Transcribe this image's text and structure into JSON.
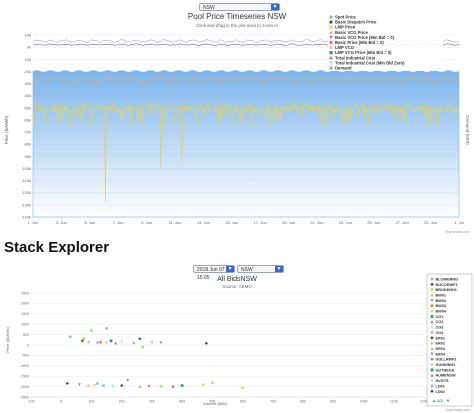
{
  "top": {
    "region_select": "NSW",
    "chart_title": "Pool Price Timeseries NSW",
    "chart_subtitle": "Click and drag in the plot area to zoom in",
    "y_axis_label": "Price ($/MWh)",
    "y2_axis_label": "Demand (MW)",
    "credit": "Highcharts.com",
    "legend": [
      {
        "name": "Spot Price",
        "color": "#7cb5ec",
        "marker": "circle"
      },
      {
        "name": "Basic Dispatch Price",
        "color": "#434348",
        "marker": "diamond"
      },
      {
        "name": "LMP Price",
        "color": "#f7d358",
        "marker": "square"
      },
      {
        "name": "Basic VCG Price",
        "color": "#f7a35c",
        "marker": "triangle"
      },
      {
        "name": "Basic VCG Price (Min Bid = 0)",
        "color": "#8085e9",
        "marker": "triangle-down"
      },
      {
        "name": "Basic Price (Min Bid = 0)",
        "color": "#f15c80",
        "marker": "circle"
      },
      {
        "name": "LMP VCG",
        "color": "#e4d354",
        "marker": "diamond"
      },
      {
        "name": "LMP VCG Price (Min Bid = 0)",
        "color": "#2b908f",
        "marker": "square"
      },
      {
        "name": "Total Industrial Cost",
        "color": "#f45b5b",
        "marker": "triangle"
      },
      {
        "name": "Total Industrial Cost (Min Bid Zero)",
        "color": "#91e8e1",
        "marker": "triangle-down"
      },
      {
        "name": "Demand",
        "color": "#7cb5ec",
        "marker": "circle"
      }
    ]
  },
  "chart_data": [
    {
      "type": "area",
      "title": "Pool Price Timeseries NSW",
      "subtitle": "Click and drag in the plot area to zoom in",
      "ylabel": "Price ($/MWh)",
      "y2label": "Demand (MW)",
      "ylim": [
        -140000,
        10000
      ],
      "yticks": [
        10000,
        0,
        -10000,
        -20000,
        -30000,
        -40000,
        -50000,
        -60000,
        -70000,
        -80000,
        -90000,
        -100000,
        -110000,
        -120000,
        -130000,
        -140000
      ],
      "ytick_labels": [
        "10k",
        "0k",
        "-10k",
        "-20k",
        "-30k",
        "-40k",
        "-50k",
        "-60k",
        "-70k",
        "-80k",
        "-90k",
        "-100k",
        "-110k",
        "-120k",
        "-130k",
        "-140k"
      ],
      "xticks": [
        "1. Jun",
        "3. Jun",
        "5. Jun",
        "7. Jun",
        "9. Jun",
        "11. Jun",
        "13. Jun",
        "15. Jun",
        "17. Jun",
        "19. Jun",
        "21. Jun",
        "23. Jun",
        "25. Jun",
        "27. Jun",
        "29. Jun",
        "1. Jul"
      ],
      "x_start_day": 1,
      "x_end_day": 31,
      "series_levels": [
        {
          "name": "Demand",
          "level": -20000
        },
        {
          "name": "Basic VCG Price (Min Bid = 0)",
          "level": 5000
        },
        {
          "name": "Basic Dispatch Price",
          "level": 2000
        },
        {
          "name": "Total Industrial Cost",
          "level": -27000
        },
        {
          "name": "LMP VCG",
          "level": -50000
        },
        {
          "name": "LMP VCG",
          "extreme_low": -127000
        }
      ]
    },
    {
      "type": "scatter",
      "title": "All BidsNSW",
      "subtitle": "Source: AEMO",
      "xlabel": "Volume (MW)",
      "ylabel": "Price ($/MWh)",
      "xlim": [
        -100,
        1200
      ],
      "ylim": [
        -2500,
        2500
      ],
      "xticks": [
        -100,
        0,
        100,
        200,
        300,
        400,
        500,
        600,
        700,
        800,
        900,
        1000,
        1100,
        1200
      ],
      "xtick_labels": [
        "-100",
        "0",
        "100",
        "200",
        "300",
        "400",
        "500",
        "600",
        "700",
        "800",
        "900",
        "1000",
        "1100",
        "1200"
      ],
      "yticks": [
        2500,
        2000,
        1500,
        1000,
        500,
        0,
        -500,
        -1000,
        -1500,
        -2000,
        -2500
      ],
      "ytick_labels": [
        "2500",
        "2000",
        "1500",
        "1000",
        "500",
        "0",
        "-500",
        "-1000",
        "-1500",
        "-2000",
        "-2500"
      ],
      "points": [
        {
          "x": 30,
          "y": 400,
          "s": 0
        },
        {
          "x": 70,
          "y": 200,
          "s": 1
        },
        {
          "x": 75,
          "y": 300,
          "s": 2
        },
        {
          "x": 90,
          "y": 150,
          "s": 3
        },
        {
          "x": 120,
          "y": 100,
          "s": 4
        },
        {
          "x": 130,
          "y": 130,
          "s": 5
        },
        {
          "x": 150,
          "y": 120,
          "s": 6
        },
        {
          "x": 165,
          "y": 200,
          "s": 7
        },
        {
          "x": 180,
          "y": 90,
          "s": 8
        },
        {
          "x": 200,
          "y": 150,
          "s": 9
        },
        {
          "x": 240,
          "y": 100,
          "s": 10
        },
        {
          "x": 260,
          "y": 300,
          "s": 11
        },
        {
          "x": 270,
          "y": -100,
          "s": 12
        },
        {
          "x": 300,
          "y": 150,
          "s": 13
        },
        {
          "x": 330,
          "y": 110,
          "s": 14
        },
        {
          "x": 480,
          "y": 80,
          "s": 1
        },
        {
          "x": 500,
          "y": -1800,
          "s": 3
        },
        {
          "x": 100,
          "y": 700,
          "s": 2
        },
        {
          "x": 150,
          "y": 800,
          "s": 0
        },
        {
          "x": 20,
          "y": -1850,
          "s": 1
        },
        {
          "x": 60,
          "y": -1900,
          "s": 4
        },
        {
          "x": 110,
          "y": -1920,
          "s": 6
        },
        {
          "x": 140,
          "y": -1950,
          "s": 0
        },
        {
          "x": 170,
          "y": -1980,
          "s": 9
        },
        {
          "x": 200,
          "y": -1950,
          "s": 11
        },
        {
          "x": 260,
          "y": -2000,
          "s": 13
        },
        {
          "x": 290,
          "y": -1950,
          "s": 8
        },
        {
          "x": 330,
          "y": -1980,
          "s": 2
        },
        {
          "x": 370,
          "y": -2000,
          "s": 5
        },
        {
          "x": 400,
          "y": -1950,
          "s": 7
        },
        {
          "x": 470,
          "y": -1900,
          "s": 16
        },
        {
          "x": 600,
          "y": -2050,
          "s": 12
        },
        {
          "x": 90,
          "y": -1950,
          "s": 3
        },
        {
          "x": 220,
          "y": -1700,
          "s": 14
        },
        {
          "x": 120,
          "y": -1850,
          "s": 10
        }
      ]
    }
  ],
  "stack": {
    "section_title": "Stack Explorer",
    "date_select": "2018 Jun 07 15:05",
    "region_select": "NSW",
    "legend_page": "1/3",
    "credit": "Highcharts.com",
    "legend": [
      {
        "name": "BLOWERNG",
        "color": "#7cb5ec",
        "marker": "circle"
      },
      {
        "name": "BOCORWF1",
        "color": "#434348",
        "marker": "diamond"
      },
      {
        "name": "BROKENH1",
        "color": "#90ed7d",
        "marker": "square"
      },
      {
        "name": "BW01",
        "color": "#f7a35c",
        "marker": "triangle"
      },
      {
        "name": "BW02",
        "color": "#8085e9",
        "marker": "triangle-down"
      },
      {
        "name": "BW03",
        "color": "#f15c80",
        "marker": "circle"
      },
      {
        "name": "BW04",
        "color": "#e4d354",
        "marker": "diamond"
      },
      {
        "name": "CG1",
        "color": "#2b908f",
        "marker": "square"
      },
      {
        "name": "CG2",
        "color": "#f45b5b",
        "marker": "triangle"
      },
      {
        "name": "CG3",
        "color": "#91e8e1",
        "marker": "triangle-down"
      },
      {
        "name": "CG4",
        "color": "#7cb5ec",
        "marker": "circle"
      },
      {
        "name": "ER01",
        "color": "#434348",
        "marker": "diamond"
      },
      {
        "name": "ER02",
        "color": "#90ed7d",
        "marker": "square"
      },
      {
        "name": "ER03",
        "color": "#f7a35c",
        "marker": "triangle"
      },
      {
        "name": "ER04",
        "color": "#8085e9",
        "marker": "triangle-down"
      },
      {
        "name": "GULLRWF1",
        "color": "#f15c80",
        "marker": "circle"
      },
      {
        "name": "GUNNING1",
        "color": "#e4d354",
        "marker": "diamond"
      },
      {
        "name": "GUTHEGA",
        "color": "#2b908f",
        "marker": "square"
      },
      {
        "name": "HUMENSW",
        "color": "#f45b5b",
        "marker": "triangle"
      },
      {
        "name": "HVGTS",
        "color": "#91e8e1",
        "marker": "triangle-down"
      },
      {
        "name": "LD01",
        "color": "#7cb5ec",
        "marker": "circle"
      },
      {
        "name": "LD02",
        "color": "#434348",
        "marker": "diamond"
      }
    ]
  }
}
